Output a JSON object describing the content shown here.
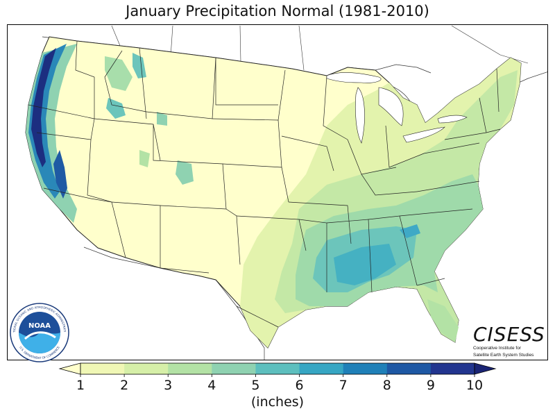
{
  "title": "January Precipitation Normal (1981-2010)",
  "colorbar": {
    "units": "(inches)",
    "ticks": [
      "1",
      "2",
      "3",
      "4",
      "5",
      "6",
      "7",
      "8",
      "9",
      "10"
    ],
    "colors": [
      "#ffffcc",
      "#f0f7b5",
      "#d6efa8",
      "#b3e2a5",
      "#8fd2b1",
      "#5dbfbe",
      "#36a6c3",
      "#1f80b8",
      "#1e58a4",
      "#22358f",
      "#1a2474"
    ],
    "extend": "both"
  },
  "logos": {
    "noaa": {
      "center_text": "NOAA",
      "ring_top": "NATIONAL OCEANIC AND ATMOSPHERIC ADMINISTRATION",
      "ring_bottom": "U.S. DEPARTMENT OF COMMERCE"
    },
    "cisess": {
      "brand": "CISESS",
      "line1": "Cooperative Institute for",
      "line2": "Satellite Earth System Studies"
    }
  }
}
